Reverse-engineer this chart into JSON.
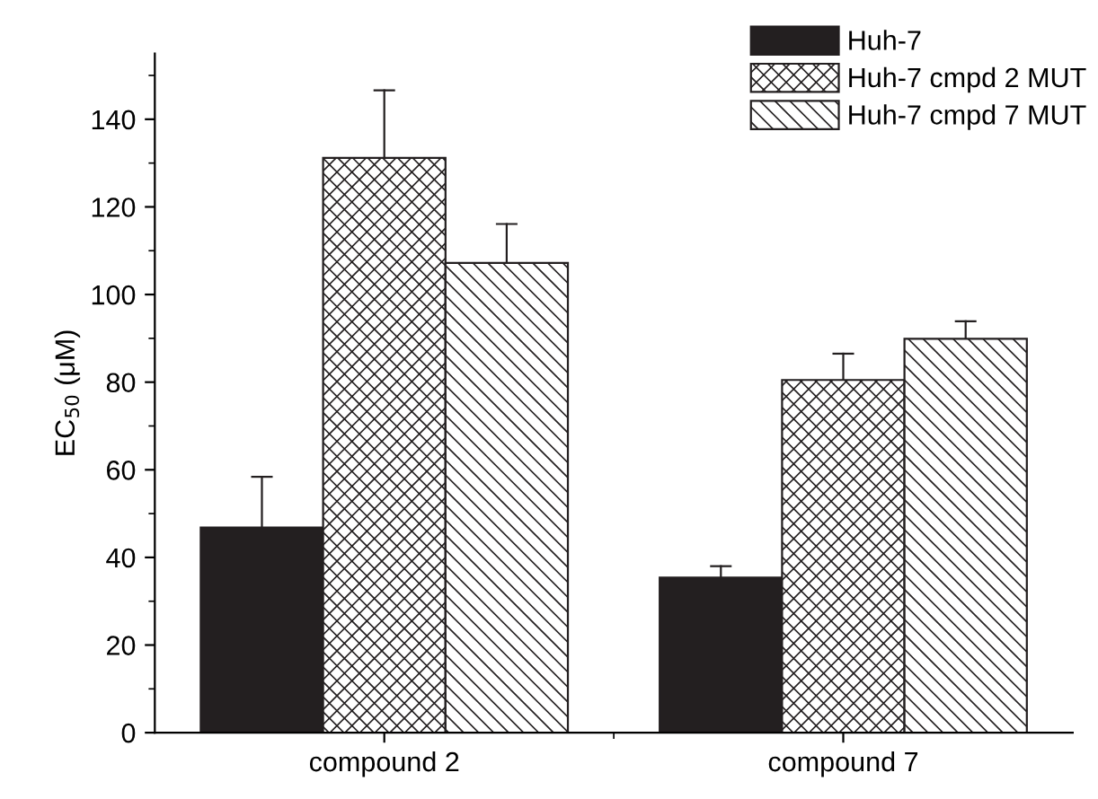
{
  "chart_data": {
    "type": "bar",
    "ylabel": "EC$_{50}$ (μM)",
    "categories": [
      "compound 2",
      "compound 7"
    ],
    "series": [
      {
        "name": "Huh-7",
        "color": "#231f20",
        "values": [
          46.8,
          35.4
        ],
        "errors": [
          [
            46.8,
            58.4
          ],
          [
            35.4,
            38.0
          ]
        ]
      },
      {
        "name": "Huh-7 cmpd 2 MUT",
        "color": "#231f20",
        "values": [
          131.2,
          80.5
        ],
        "errors": [
          [
            131.2,
            146.6
          ],
          [
            80.5,
            86.5
          ]
        ]
      },
      {
        "name": "Huh-7 cmpd 7 MUT",
        "color": "#231f20",
        "values": [
          107.2,
          89.9
        ],
        "errors": [
          [
            107.2,
            116.1
          ],
          [
            89.9,
            93.9
          ]
        ]
      }
    ],
    "ylim": [
      0,
      155
    ],
    "yticks": [
      0,
      20,
      40,
      60,
      80,
      100,
      120,
      140
    ],
    "grid": false,
    "legend": "top right"
  }
}
